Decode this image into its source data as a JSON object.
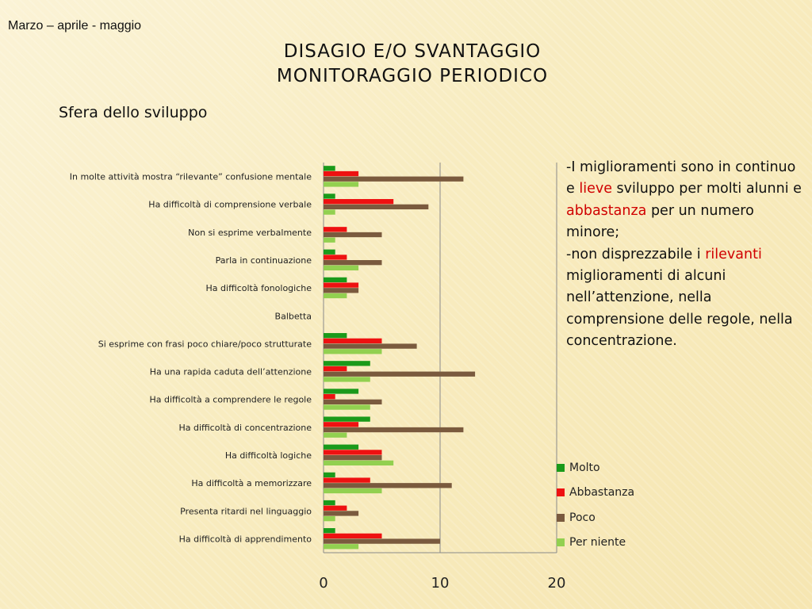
{
  "header": {
    "date_label": "Marzo – aprile - maggio",
    "title_line1": "Disagio e/o svantaggio",
    "title_line2": "monitoraggio periodico"
  },
  "subtitle": "Sfera dello sviluppo",
  "note": {
    "p1": "-I miglioramenti sono in continuo e ",
    "h1": "lieve",
    "p2": " sviluppo per molti alunni e ",
    "h2": "abbastanza",
    "p3": " per un numero minore;",
    "p4": "-non disprezzabile i ",
    "h3": "rilevanti",
    "p5": " miglioramenti di alcuni nell’attenzione, nella comprensione delle regole, nella concentrazione.",
    "highlight_color": "#d00000"
  },
  "chart_data": {
    "type": "bar",
    "orientation": "horizontal",
    "categories": [
      "In molte attività mostra “rilevante” confusione mentale",
      "Ha difficoltà di comprensione verbale",
      "Non si esprime verbalmente",
      "Parla in continuazione",
      "Ha difficoltà fonologiche",
      "Balbetta",
      "Si esprime con frasi poco chiare/poco strutturate",
      "Ha una rapida caduta dell’attenzione",
      "Ha difficoltà a comprendere le regole",
      "Ha difficoltà di concentrazione",
      "Ha difficoltà logiche",
      "Ha difficoltà a memorizzare",
      "Presenta ritardi nel linguaggio",
      "Ha difficoltà di apprendimento"
    ],
    "series": [
      {
        "name": "Molto",
        "color": "#1a9a1a",
        "values": [
          1,
          1,
          0,
          1,
          2,
          0,
          2,
          4,
          3,
          4,
          3,
          1,
          1,
          1
        ]
      },
      {
        "name": "Abbastanza",
        "color": "#ee1111",
        "values": [
          3,
          6,
          2,
          2,
          3,
          0,
          5,
          2,
          1,
          3,
          5,
          4,
          2,
          5
        ]
      },
      {
        "name": "Poco",
        "color": "#7a5a3e",
        "values": [
          12,
          9,
          5,
          5,
          3,
          0,
          8,
          13,
          5,
          12,
          5,
          11,
          3,
          10
        ]
      },
      {
        "name": "Per niente",
        "color": "#92d050",
        "values": [
          3,
          1,
          1,
          3,
          2,
          0,
          5,
          4,
          4,
          2,
          6,
          5,
          1,
          3
        ]
      }
    ],
    "xlim": [
      0,
      20
    ],
    "xticks": [
      "0",
      "10",
      "20"
    ],
    "grid": "vertical",
    "legend_position": "bottom-right"
  }
}
